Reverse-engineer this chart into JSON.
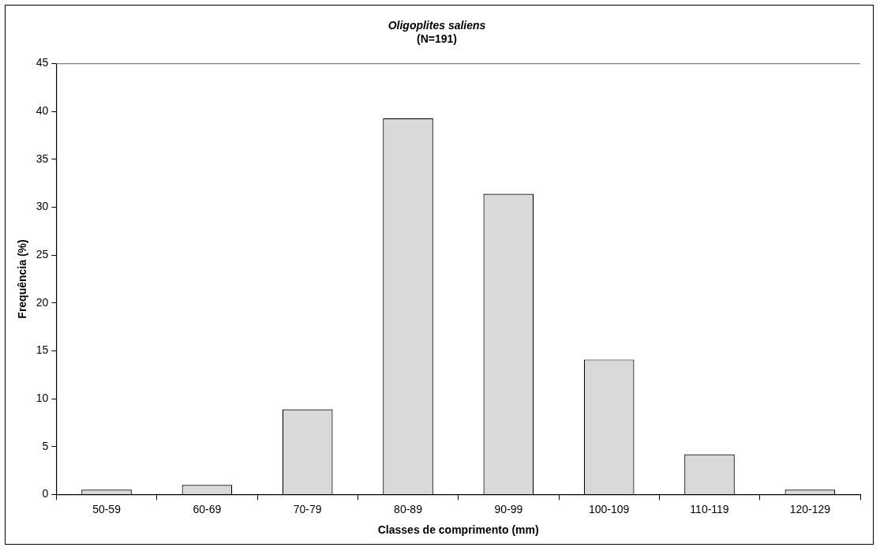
{
  "chart_data": {
    "type": "bar",
    "title": "Oligoplites saliens",
    "subtitle": "(N=191)",
    "xlabel": "Classes de comprimento (mm)",
    "ylabel": "Frequência (%)",
    "categories": [
      "50-59",
      "60-69",
      "70-79",
      "80-89",
      "90-99",
      "100-109",
      "110-119",
      "120-129"
    ],
    "values": [
      0.5,
      1.0,
      8.9,
      39.3,
      31.4,
      14.1,
      4.2,
      0.5
    ],
    "color": "#d9d9d9",
    "ylim": [
      0,
      45
    ],
    "yticks": [
      0,
      5,
      10,
      15,
      20,
      25,
      30,
      35,
      40,
      45
    ],
    "grid": false,
    "legend": false
  }
}
